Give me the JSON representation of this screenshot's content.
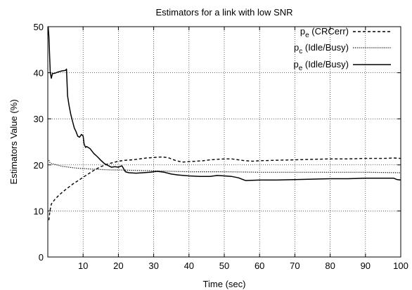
{
  "chart_data": {
    "type": "line",
    "title": "Estimators for a link with low SNR",
    "xlabel": "Time (sec)",
    "ylabel": "Estimators Value (%)",
    "xlim": [
      0,
      100
    ],
    "ylim": [
      0,
      50
    ],
    "grid": true,
    "legend_position": "top-right",
    "x_ticks": [
      "10",
      "20",
      "30",
      "40",
      "50",
      "60",
      "70",
      "80",
      "90",
      "100"
    ],
    "y_ticks": [
      "0",
      "10",
      "20",
      "30",
      "40",
      "50"
    ],
    "series": [
      {
        "name_main": "p",
        "name_sub": "e",
        "name_rest": " (CRCerr)",
        "dash": "4,3",
        "stroke_width": 1.4,
        "points": [
          [
            0.3,
            8
          ],
          [
            0.6,
            10
          ],
          [
            1,
            11.5
          ],
          [
            2,
            12.5
          ],
          [
            3,
            13.3
          ],
          [
            4,
            14
          ],
          [
            5,
            14.6
          ],
          [
            6,
            15.2
          ],
          [
            7,
            15.8
          ],
          [
            8,
            16.3
          ],
          [
            9,
            16.8
          ],
          [
            10,
            17.3
          ],
          [
            11,
            17.8
          ],
          [
            12,
            18.3
          ],
          [
            13,
            18.8
          ],
          [
            14,
            19.2
          ],
          [
            15,
            19.6
          ],
          [
            16,
            19.9
          ],
          [
            17,
            20.2
          ],
          [
            18,
            20.4
          ],
          [
            19,
            20.6
          ],
          [
            20,
            20.8
          ],
          [
            22,
            21
          ],
          [
            24,
            21.1
          ],
          [
            26,
            21.3
          ],
          [
            28,
            21.5
          ],
          [
            30,
            21.6
          ],
          [
            32,
            21.7
          ],
          [
            34,
            21.6
          ],
          [
            36,
            21
          ],
          [
            38,
            20.6
          ],
          [
            40,
            20.7
          ],
          [
            42,
            20.8
          ],
          [
            44,
            20.9
          ],
          [
            46,
            21.1
          ],
          [
            48,
            21.2
          ],
          [
            50,
            21.3
          ],
          [
            52,
            21.3
          ],
          [
            54,
            21.1
          ],
          [
            56,
            20.9
          ],
          [
            58,
            20.8
          ],
          [
            60,
            20.9
          ],
          [
            65,
            21
          ],
          [
            70,
            21.1
          ],
          [
            75,
            21.2
          ],
          [
            80,
            21.3
          ],
          [
            85,
            21.3
          ],
          [
            90,
            21.4
          ],
          [
            95,
            21.4
          ],
          [
            98,
            21.5
          ],
          [
            100,
            21.4
          ]
        ]
      },
      {
        "name_main": "p",
        "name_sub": "c",
        "name_rest": " (Idle/Busy)",
        "dash": "1.2,1.6",
        "stroke_width": 1.2,
        "points": [
          [
            0.3,
            21
          ],
          [
            0.6,
            20.5
          ],
          [
            1,
            20.3
          ],
          [
            2,
            20.1
          ],
          [
            3,
            19.9
          ],
          [
            4,
            19.7
          ],
          [
            5,
            19.6
          ],
          [
            6,
            19.5
          ],
          [
            8,
            19.3
          ],
          [
            10,
            19.2
          ],
          [
            12,
            19.1
          ],
          [
            15,
            19
          ],
          [
            18,
            18.9
          ],
          [
            20,
            18.9
          ],
          [
            25,
            18.8
          ],
          [
            30,
            18.7
          ],
          [
            35,
            18.6
          ],
          [
            40,
            18.5
          ],
          [
            50,
            18.5
          ],
          [
            60,
            18.4
          ],
          [
            70,
            18.4
          ],
          [
            80,
            18.4
          ],
          [
            90,
            18.4
          ],
          [
            100,
            18.3
          ]
        ]
      },
      {
        "name_main": "p",
        "name_sub": "e",
        "name_rest": " (Idle/Busy)",
        "dash": "",
        "stroke_width": 1.5,
        "points": [
          [
            0.1,
            50
          ],
          [
            0.3,
            48
          ],
          [
            0.5,
            44
          ],
          [
            0.7,
            40
          ],
          [
            1,
            38.8
          ],
          [
            1.3,
            39.8
          ],
          [
            2,
            39.9
          ],
          [
            3,
            40.2
          ],
          [
            4,
            40.4
          ],
          [
            5,
            40.5
          ],
          [
            5.3,
            40.8
          ],
          [
            5.6,
            35
          ],
          [
            6,
            33
          ],
          [
            6.5,
            31
          ],
          [
            7,
            29.5
          ],
          [
            7.5,
            28
          ],
          [
            8,
            27.2
          ],
          [
            8.5,
            26.2
          ],
          [
            9,
            26
          ],
          [
            9.5,
            26.6
          ],
          [
            10,
            26.3
          ],
          [
            10.3,
            24.5
          ],
          [
            10.7,
            23.8
          ],
          [
            11,
            24
          ],
          [
            12,
            23.5
          ],
          [
            13,
            22.5
          ],
          [
            14,
            21.8
          ],
          [
            15,
            21
          ],
          [
            16,
            20.3
          ],
          [
            17,
            19.9
          ],
          [
            18,
            19.5
          ],
          [
            19,
            19.6
          ],
          [
            20,
            19.5
          ],
          [
            21,
            19.8
          ],
          [
            22,
            18.5
          ],
          [
            23,
            18.3
          ],
          [
            25,
            18.2
          ],
          [
            27,
            18.3
          ],
          [
            29,
            18.4
          ],
          [
            31,
            18.6
          ],
          [
            33,
            18.4
          ],
          [
            35,
            18
          ],
          [
            37,
            17.8
          ],
          [
            40,
            17.6
          ],
          [
            43,
            17.5
          ],
          [
            46,
            17.5
          ],
          [
            48,
            17.7
          ],
          [
            50,
            17.6
          ],
          [
            52,
            17.5
          ],
          [
            54,
            17.2
          ],
          [
            56,
            16.6
          ],
          [
            60,
            16.7
          ],
          [
            65,
            16.7
          ],
          [
            70,
            16.8
          ],
          [
            75,
            16.9
          ],
          [
            80,
            17
          ],
          [
            85,
            17
          ],
          [
            90,
            17.1
          ],
          [
            95,
            17.1
          ],
          [
            98,
            17.1
          ],
          [
            99,
            16.8
          ],
          [
            100,
            16.7
          ]
        ]
      }
    ]
  }
}
